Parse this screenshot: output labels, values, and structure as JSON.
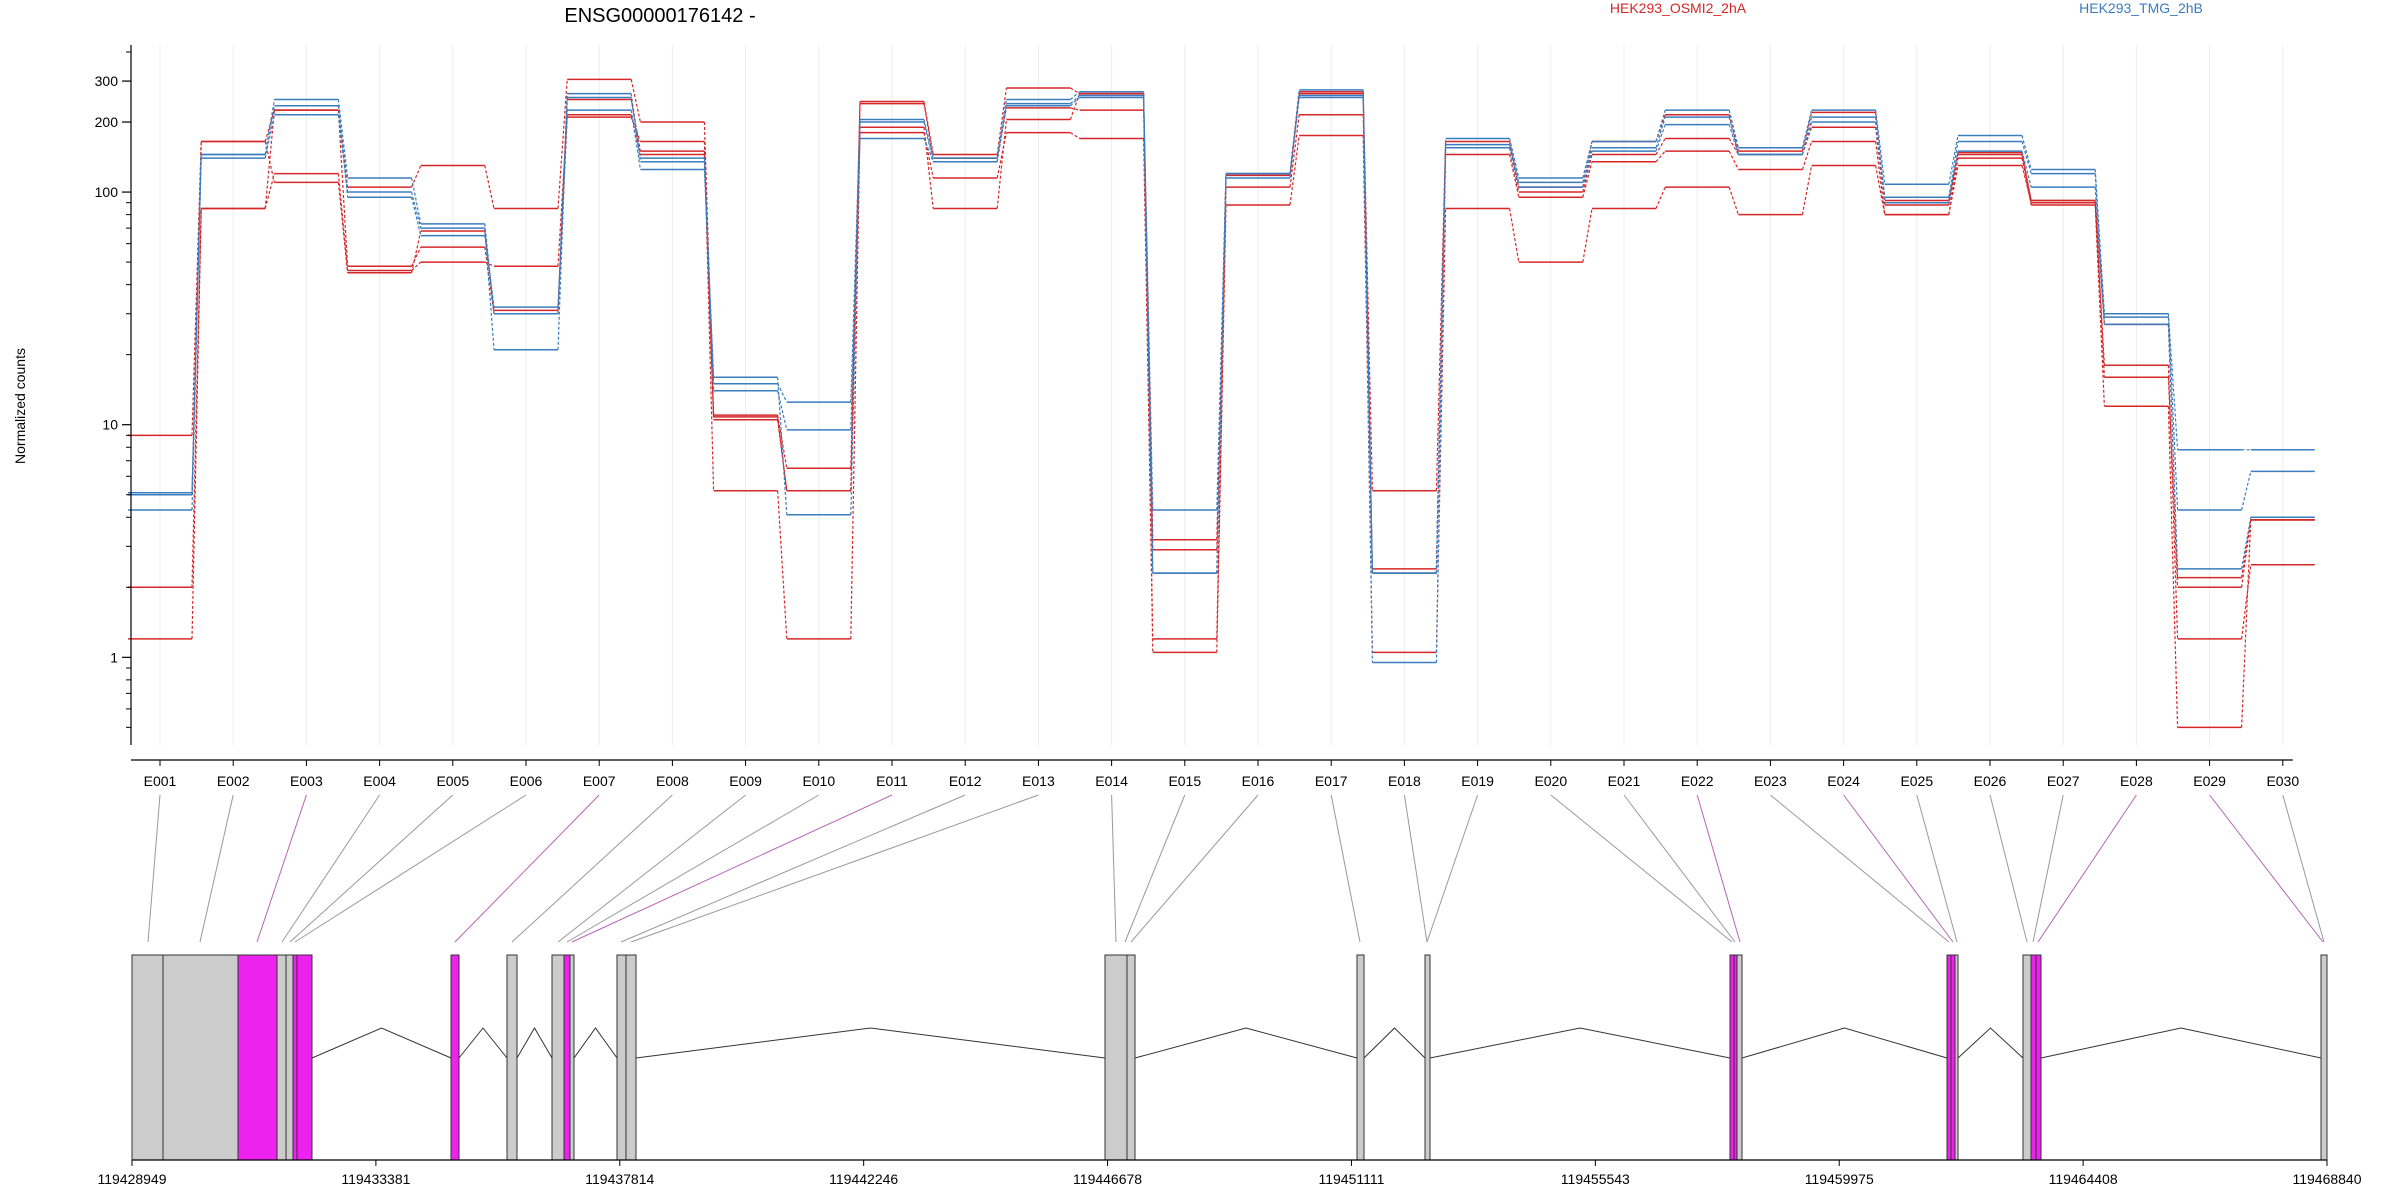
{
  "chart_data": {
    "type": "line",
    "title": "ENSG00000176142 -",
    "ylabel": "Normalized counts",
    "y_scale": "log",
    "ylim": [
      0.45,
      400
    ],
    "y_ticks": [
      1,
      10,
      100,
      200,
      300
    ],
    "y_tick_labels": [
      "1",
      "10",
      "100",
      "200",
      "300"
    ],
    "legend": [
      {
        "name": "HEK293_OSMI2_2hA",
        "color": "#d62728"
      },
      {
        "name": "HEK293_TMG_2hB",
        "color": "#3a7dbf"
      }
    ],
    "categories": [
      "E001",
      "E002",
      "E003",
      "E004",
      "E005",
      "E006",
      "E007",
      "E008",
      "E009",
      "E010",
      "E011",
      "E012",
      "E013",
      "E014",
      "E015",
      "E016",
      "E017",
      "E018",
      "E019",
      "E020",
      "E021",
      "E022",
      "E023",
      "E024",
      "E025",
      "E026",
      "E027",
      "E028",
      "E029",
      "E030"
    ],
    "series": [
      {
        "group": "red",
        "values": [
          9,
          165,
          225,
          105,
          130,
          85,
          305,
          200,
          11,
          6.5,
          245,
          145,
          280,
          265,
          3.2,
          120,
          270,
          5.2,
          165,
          105,
          165,
          215,
          150,
          220,
          92,
          148,
          92,
          27,
          2.2,
          3.9
        ]
      },
      {
        "group": "red",
        "values": [
          1.2,
          85,
          225,
          48,
          58,
          30,
          210,
          165,
          5.2,
          1.2,
          190,
          85,
          205,
          265,
          1.05,
          88,
          175,
          1.05,
          85,
          50,
          85,
          105,
          80,
          130,
          80,
          130,
          90,
          18,
          1.2,
          2.5
        ]
      },
      {
        "group": "red",
        "values": [
          2,
          85,
          120,
          46,
          50,
          48,
          215,
          145,
          10.5,
          5.2,
          180,
          115,
          180,
          170,
          1.2,
          105,
          215,
          2.4,
          145,
          95,
          135,
          150,
          125,
          165,
          80,
          140,
          88,
          12,
          0.5,
          3.9
        ]
      },
      {
        "group": "red",
        "values": [
          5,
          165,
          110,
          45,
          68,
          31,
          250,
          150,
          10.8,
          5.2,
          240,
          140,
          230,
          225,
          2.9,
          118,
          265,
          2.3,
          155,
          100,
          145,
          170,
          145,
          190,
          88,
          145,
          92,
          16,
          2,
          3.9
        ]
      },
      {
        "group": "blue",
        "values": [
          5.1,
          145,
          250,
          115,
          73,
          30,
          265,
          140,
          15,
          12.5,
          205,
          140,
          250,
          270,
          4.3,
          120,
          275,
          2.3,
          170,
          115,
          165,
          225,
          155,
          225,
          108,
          175,
          125,
          30,
          7.8,
          7.8
        ]
      },
      {
        "group": "blue",
        "values": [
          4.3,
          140,
          215,
          100,
          70,
          21,
          255,
          135,
          14,
          9.5,
          170,
          135,
          235,
          255,
          2.3,
          115,
          260,
          0.95,
          160,
          110,
          155,
          210,
          145,
          210,
          95,
          165,
          120,
          29,
          4.3,
          6.3
        ]
      },
      {
        "group": "blue",
        "values": [
          5.0,
          145,
          235,
          95,
          65,
          32,
          225,
          125,
          16,
          4.1,
          200,
          135,
          240,
          260,
          2.3,
          120,
          255,
          2.3,
          155,
          105,
          150,
          195,
          145,
          200,
          90,
          150,
          105,
          27,
          2.4,
          4
        ]
      }
    ],
    "genome_axis": {
      "tick_labels": [
        "119428949",
        "119433381",
        "119437814",
        "119442246",
        "119446678",
        "119451111",
        "119455543",
        "119459975",
        "119464408",
        "119468840"
      ]
    }
  },
  "colors": {
    "red": "#d62728",
    "blue": "#3a7dbf",
    "highlight": "#ee22ee",
    "exon_fill": "#cccccc",
    "connector": "#999999"
  }
}
